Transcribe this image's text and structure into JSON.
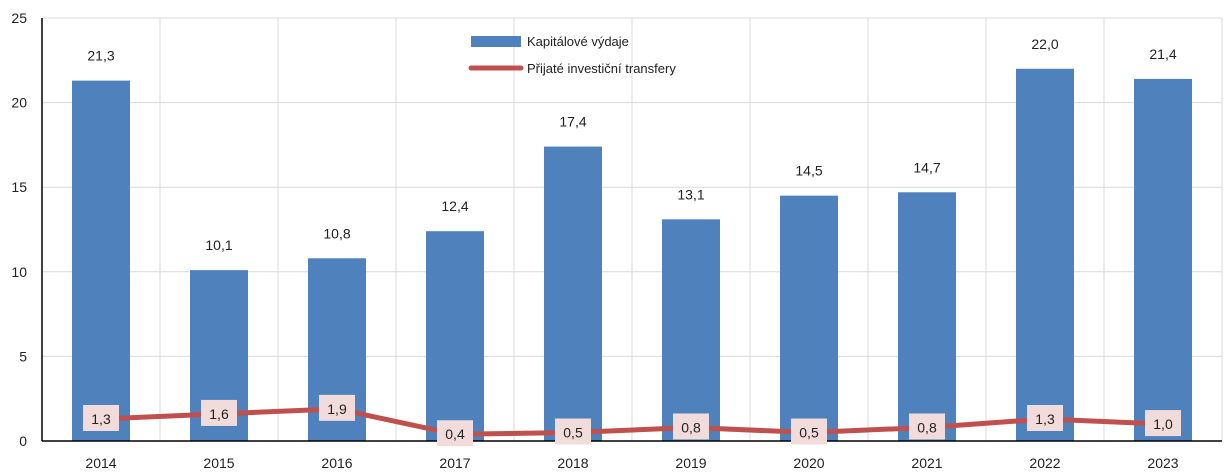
{
  "chart_data": {
    "type": "bar",
    "categories": [
      "2014",
      "2015",
      "2016",
      "2017",
      "2018",
      "2019",
      "2020",
      "2021",
      "2022",
      "2023"
    ],
    "series": [
      {
        "name": "Kapitálové výdaje",
        "kind": "bar",
        "color": "#4f81bd",
        "values": [
          21.3,
          10.1,
          10.8,
          12.4,
          17.4,
          13.1,
          14.5,
          14.7,
          22.0,
          21.4
        ],
        "labels": [
          "21,3",
          "10,1",
          "10,8",
          "12,4",
          "17,4",
          "13,1",
          "14,5",
          "14,7",
          "22,0",
          "21,4"
        ]
      },
      {
        "name": "Přijaté investiční transfery",
        "kind": "line",
        "color": "#c0504d",
        "label_bg": "#f2dcdb",
        "values": [
          1.3,
          1.6,
          1.9,
          0.4,
          0.5,
          0.8,
          0.5,
          0.8,
          1.3,
          1.0
        ],
        "labels": [
          "1,3",
          "1,6",
          "1,9",
          "0,4",
          "0,5",
          "0,8",
          "0,5",
          "0,8",
          "1,3",
          "1,0"
        ]
      }
    ],
    "y_ticks": [
      "0",
      "5",
      "10",
      "15",
      "20",
      "25"
    ],
    "ylim": [
      0,
      25
    ],
    "grid": true,
    "legend": "top-center"
  }
}
